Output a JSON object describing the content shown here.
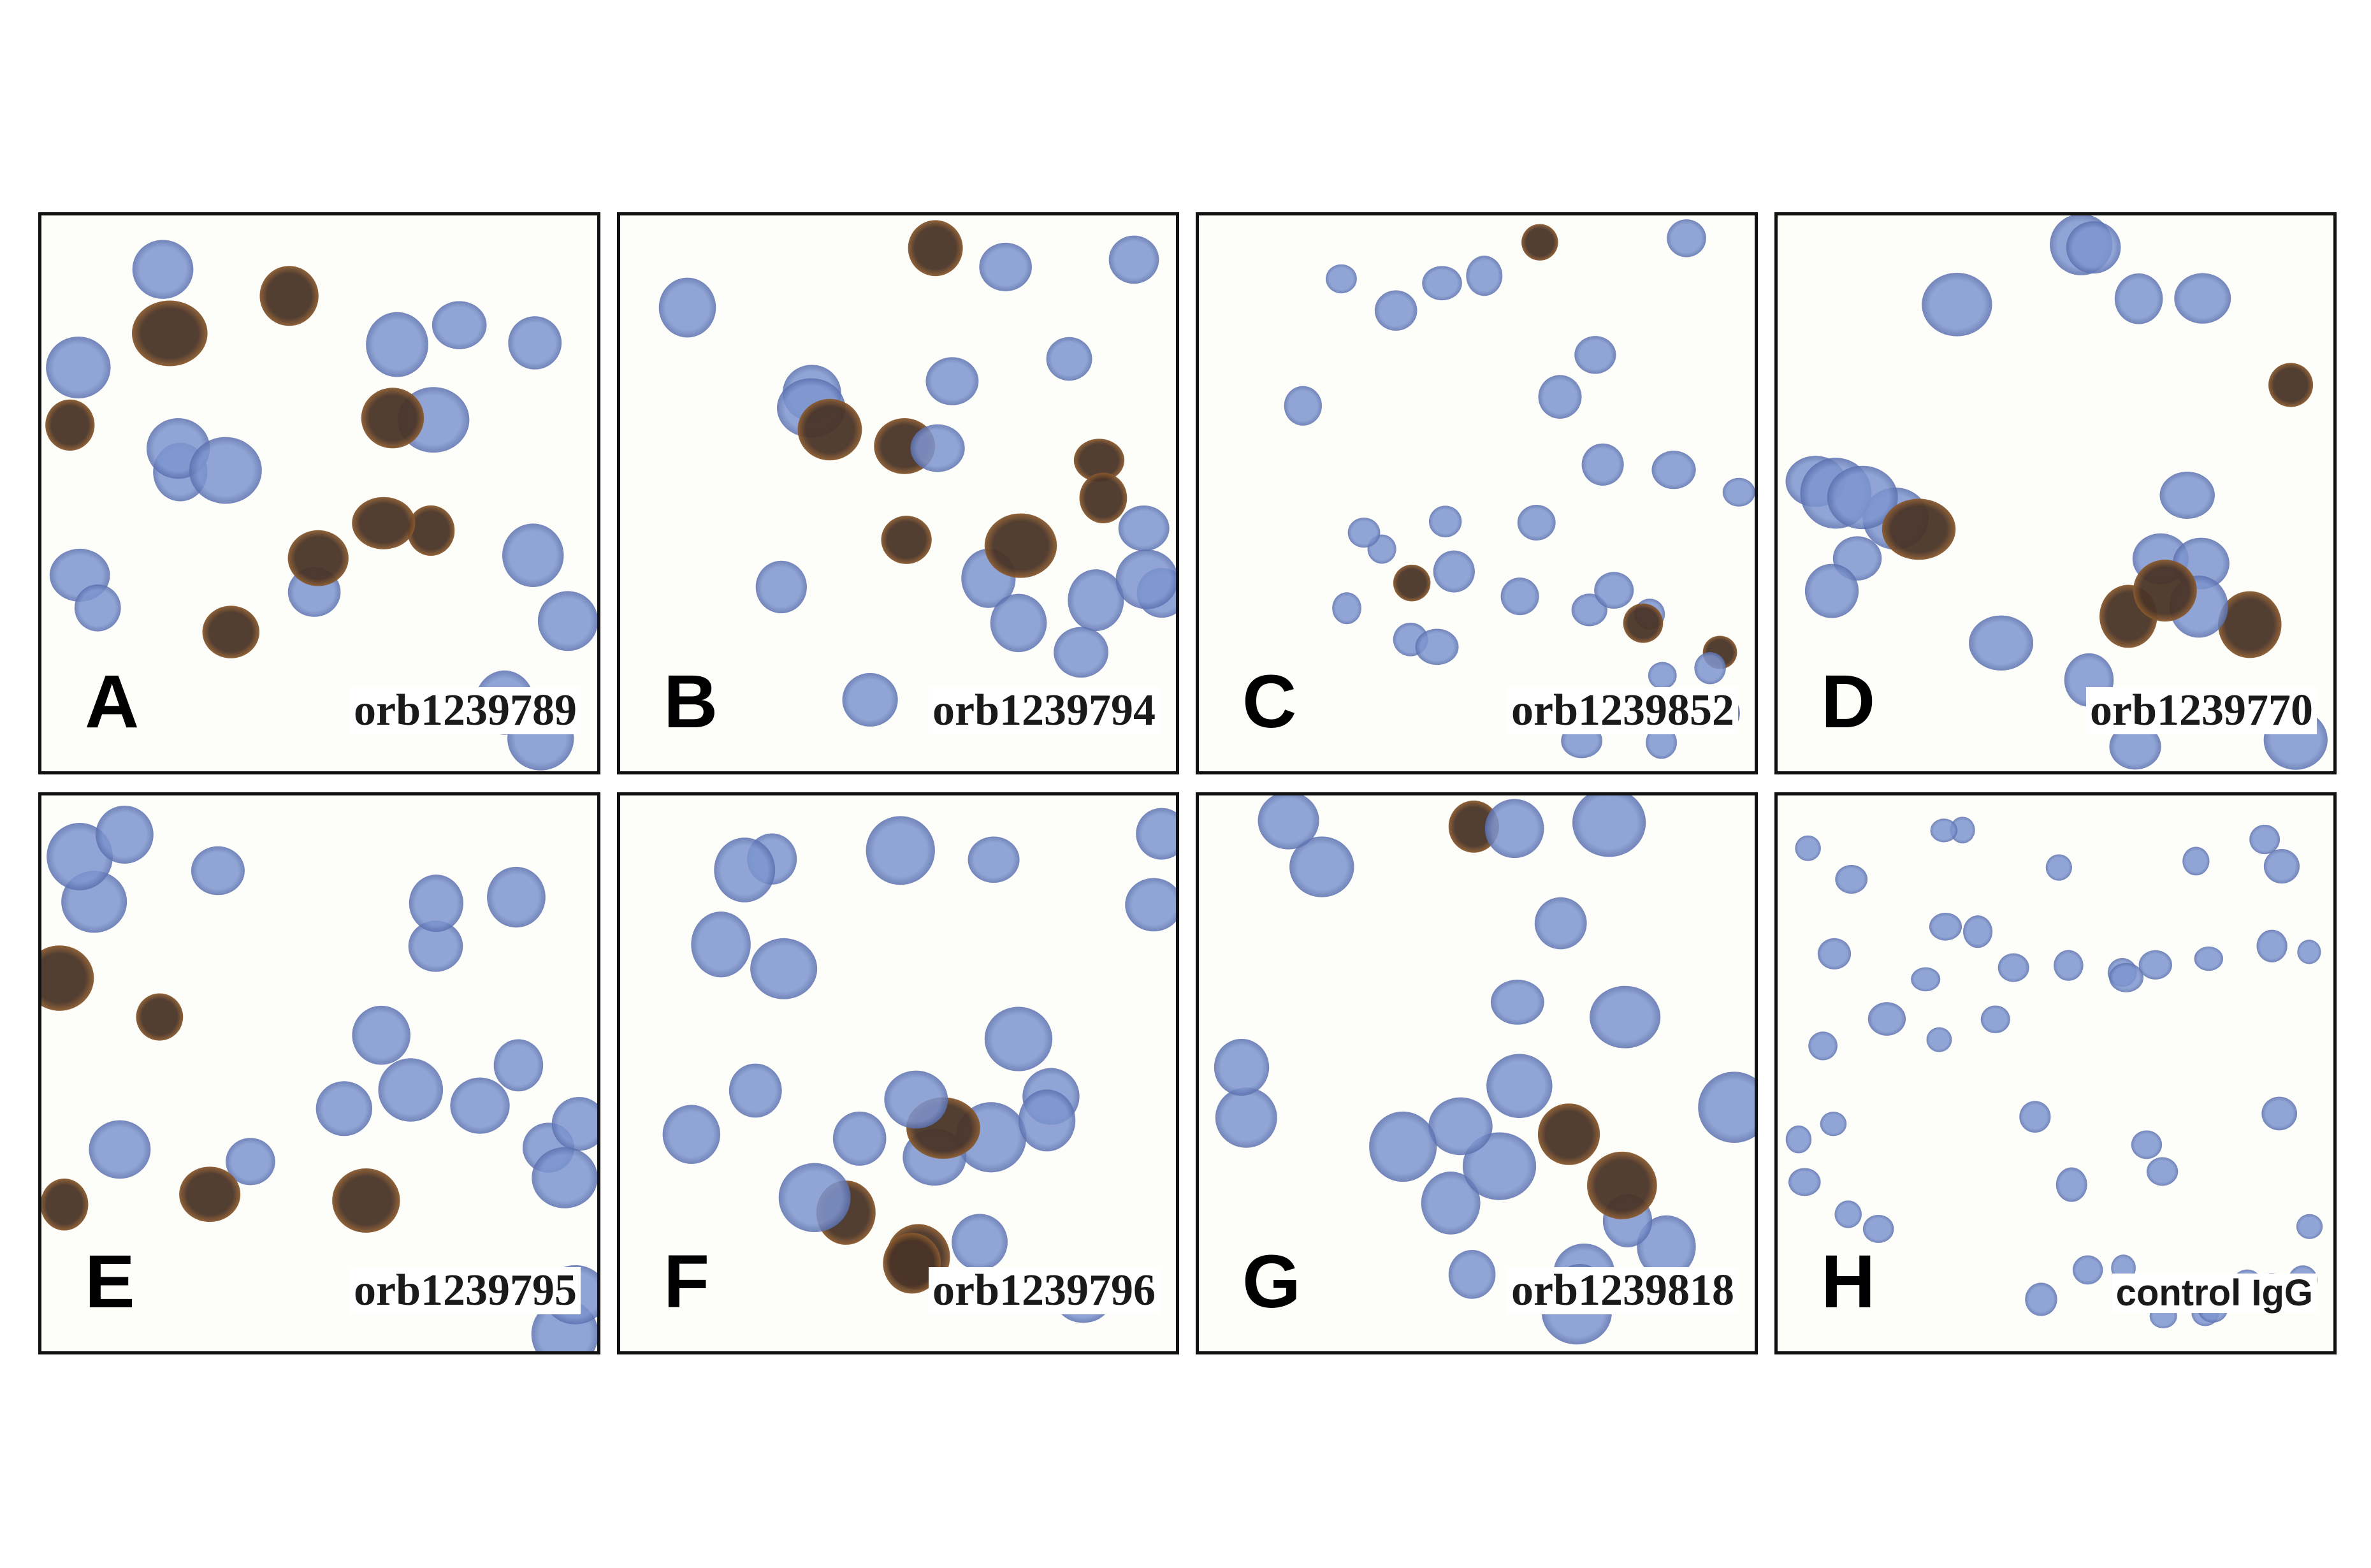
{
  "panels": [
    {
      "letter": "A",
      "antibody": "orb1239789",
      "label_font": "serif",
      "stain_density": "medium"
    },
    {
      "letter": "B",
      "antibody": "orb1239794",
      "label_font": "serif",
      "stain_density": "medium"
    },
    {
      "letter": "C",
      "antibody": "orb1239852",
      "label_font": "serif",
      "stain_density": "sparse"
    },
    {
      "letter": "D",
      "antibody": "orb1239770",
      "label_font": "serif",
      "stain_density": "medium"
    },
    {
      "letter": "E",
      "antibody": "orb1239795",
      "label_font": "serif",
      "stain_density": "medium"
    },
    {
      "letter": "F",
      "antibody": "orb1239796",
      "label_font": "serif",
      "stain_density": "medium"
    },
    {
      "letter": "G",
      "antibody": "orb1239818",
      "label_font": "serif",
      "stain_density": "medium"
    },
    {
      "letter": "H",
      "antibody": "control IgG",
      "label_font": "sans",
      "stain_density": "none"
    }
  ],
  "colors": {
    "background": "#ffffff",
    "panel_border": "#111111",
    "hematoxylin_cell": "#7d95cf",
    "hematoxylin_cell_dark": "#5a6fae",
    "dab_positive_cell": "#4a3427",
    "dab_positive_ring": "#8a5a2e"
  }
}
